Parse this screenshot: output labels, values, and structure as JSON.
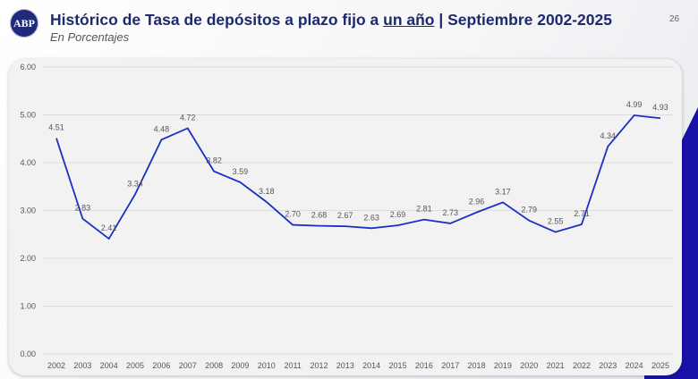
{
  "header": {
    "logo_text": "ABP",
    "title_pre": "Histórico de Tasa de depósitos a plazo fijo a ",
    "title_underlined": "un año",
    "title_post": " | Septiembre 2002-2025",
    "subtitle": "En Porcentajes",
    "page_number": "26"
  },
  "chart_data": {
    "type": "line",
    "title": "Histórico de Tasa de depósitos a plazo fijo a un año | Septiembre 2002-2025",
    "subtitle": "En Porcentajes",
    "categories": [
      "2002",
      "2003",
      "2004",
      "2005",
      "2006",
      "2007",
      "2008",
      "2009",
      "2010",
      "2011",
      "2012",
      "2013",
      "2014",
      "2015",
      "2016",
      "2017",
      "2018",
      "2019",
      "2020",
      "2021",
      "2022",
      "2023",
      "2024",
      "2025"
    ],
    "values": [
      4.51,
      2.83,
      2.41,
      3.34,
      4.48,
      4.72,
      3.82,
      3.59,
      3.18,
      2.7,
      2.68,
      2.67,
      2.63,
      2.69,
      2.81,
      2.73,
      2.96,
      3.17,
      2.79,
      2.55,
      2.71,
      4.34,
      4.99,
      4.93
    ],
    "value_labels": [
      "4.51",
      "2.83",
      "2.41",
      "3.34",
      "4.48",
      "4.72",
      "3.82",
      "3.59",
      "3.18",
      "2.70",
      "2.68",
      "2.67",
      "2.63",
      "2.69",
      "2.81",
      "2.73",
      "2.96",
      "3.17",
      "2.79",
      "2.55",
      "2.71",
      "4.34",
      "4.99",
      "4.93"
    ],
    "yticks": [
      "0.00",
      "1.00",
      "2.00",
      "3.00",
      "4.00",
      "5.00",
      "6.00"
    ],
    "ylim": [
      0,
      6
    ],
    "grid": true,
    "line_color": "#1a2fc4"
  }
}
